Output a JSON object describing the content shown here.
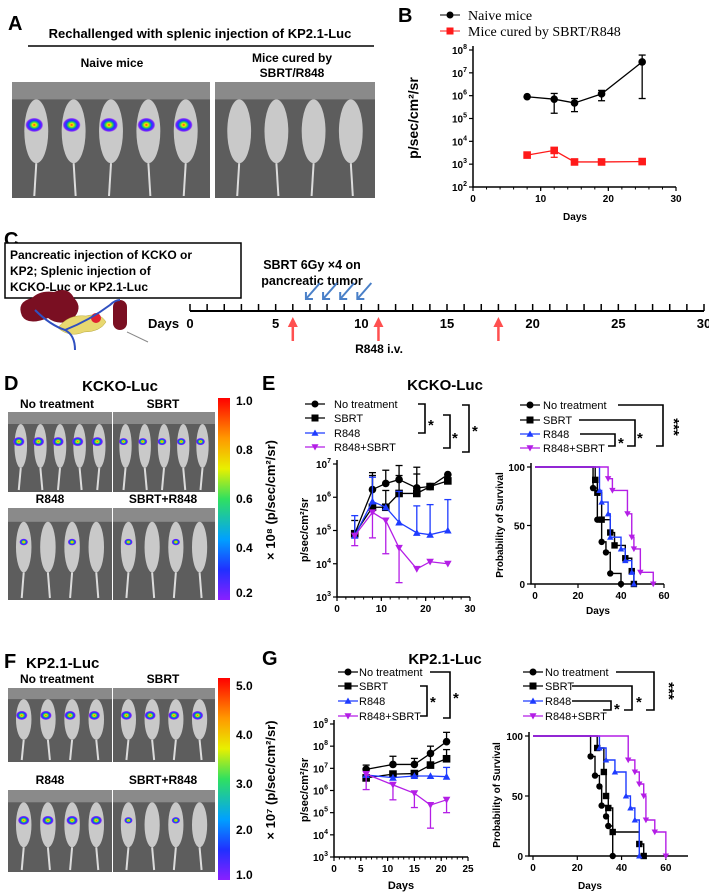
{
  "panels": {
    "A": {
      "letter": "A",
      "title": "Rechallenged with splenic injection of KP2.1-Luc",
      "label_naive": "Naive mice",
      "label_cured_1": "Mice cured by",
      "label_cured_2": "SBRT/R848"
    },
    "B": {
      "letter": "B"
    },
    "C": {
      "letter": "C",
      "box_lines": [
        "Pancreatic injection of KCKO or",
        "KP2; Splenic injection of",
        "KCKO-Luc or KP2.1-Luc"
      ],
      "sbrt_line1": "SBRT 6Gy ×4 on",
      "sbrt_line2": "pancreatic tumor",
      "days_label": "Days",
      "r848_label": "R848 i.v.",
      "timeline_max_day": 30,
      "sbrt_days": [
        7,
        8,
        9,
        10
      ],
      "r848_days": [
        6,
        11,
        18
      ]
    },
    "D": {
      "letter": "D",
      "title": "KCKO-Luc",
      "groups": [
        "No treatment",
        "SBRT",
        "R848",
        "SBRT+R848"
      ],
      "colorbar_ticks": [
        "1.0",
        "0.8",
        "0.6",
        "0.4",
        "0.2"
      ],
      "colorbar_label": "× 10⁸ (p/sec/cm²/sr)"
    },
    "E": {
      "letter": "E",
      "title": "KCKO-Luc"
    },
    "F": {
      "letter": "F",
      "title": "KP2.1-Luc",
      "groups": [
        "No treatment",
        "SBRT",
        "R848",
        "SBRT+R848"
      ],
      "colorbar_ticks": [
        "5.0",
        "4.0",
        "3.0",
        "2.0",
        "1.0"
      ],
      "colorbar_label": "× 10⁷ (p/sec/cm²/sr)"
    },
    "G": {
      "letter": "G",
      "title": "KP2.1-Luc"
    }
  },
  "colors": {
    "black": "#000000",
    "red": "#ff1a1a",
    "blue": "#1f3cff",
    "purple": "#b41ee6"
  },
  "chart_data": [
    {
      "id": "B",
      "type": "line",
      "yscale": "log",
      "xlabel": "Days",
      "ylabel": "p/sec/cm²/sr",
      "xlim": [
        0,
        30
      ],
      "xticks": [
        0,
        10,
        20,
        30
      ],
      "ylim_exp": [
        2,
        8
      ],
      "legend": "top",
      "series": [
        {
          "name": "Naive mice",
          "marker": "circle",
          "color": "#000000",
          "x": [
            8,
            12,
            15,
            19,
            25
          ],
          "y": [
            900000,
            700000,
            480000,
            1200000,
            30000000
          ],
          "err_upper": [
            null,
            1250000,
            750000,
            1700000,
            60000000
          ],
          "err_lower": [
            null,
            170000,
            200000,
            600000,
            750000
          ]
        },
        {
          "name": "Mice cured by SBRT/R848",
          "marker": "square",
          "color": "#ff1a1a",
          "x": [
            8,
            12,
            15,
            19,
            25
          ],
          "y": [
            2500,
            4000,
            1250,
            1250,
            1300
          ],
          "err_upper": [
            null,
            5000,
            null,
            null,
            null
          ],
          "err_lower": [
            null,
            2000,
            null,
            null,
            null
          ]
        }
      ]
    },
    {
      "id": "E-bli",
      "type": "line",
      "yscale": "log",
      "xlabel": "",
      "ylabel": "p/sec/cm²/sr",
      "xlim": [
        0,
        30
      ],
      "xticks": [
        0,
        10,
        20,
        30
      ],
      "ylim_exp": [
        3,
        7
      ],
      "legend": "top",
      "significance": [
        "*",
        "*",
        "*"
      ],
      "series": [
        {
          "name": "No treatment",
          "marker": "circle",
          "color": "#000000",
          "x": [
            4,
            8,
            11,
            14,
            18,
            21,
            25
          ],
          "y": [
            80000,
            1700000,
            2600000,
            3400000,
            1900000,
            2100000,
            4800000
          ],
          "err_upper": [
            200000,
            5500000,
            6500000,
            9000000,
            8000000,
            null,
            null
          ],
          "err_lower": [
            null,
            null,
            null,
            null,
            null,
            null,
            null
          ]
        },
        {
          "name": "SBRT",
          "marker": "square",
          "color": "#000000",
          "x": [
            4,
            8,
            11,
            14,
            18,
            21,
            25
          ],
          "y": [
            80000,
            500000,
            500000,
            1300000,
            1300000,
            2100000,
            3100000
          ],
          "err_upper": [
            null,
            4500000,
            1600000,
            4500000,
            5000000,
            null,
            null
          ],
          "err_lower": [
            null,
            null,
            null,
            null,
            null,
            null,
            null
          ]
        },
        {
          "name": "R848",
          "marker": "triangle-up",
          "color": "#1f3cff",
          "x": [
            4,
            8,
            11,
            14,
            18,
            21,
            25
          ],
          "y": [
            70000,
            750000,
            500000,
            175000,
            85000,
            75000,
            100000
          ],
          "err_upper": [
            280000,
            4000000,
            null,
            1500000,
            550000,
            600000,
            850000
          ],
          "err_lower": [
            null,
            null,
            null,
            null,
            null,
            null,
            null
          ]
        },
        {
          "name": "R848+SBRT",
          "marker": "triangle-down",
          "color": "#b41ee6",
          "x": [
            4,
            8,
            11,
            14,
            18,
            21,
            25
          ],
          "y": [
            70000,
            350000,
            200000,
            30000,
            7000,
            11500,
            10000
          ],
          "err_upper": [
            null,
            null,
            null,
            null,
            null,
            null,
            null
          ],
          "err_lower": [
            35000,
            60000,
            20000,
            2700,
            null,
            null,
            null
          ]
        }
      ]
    },
    {
      "id": "E-surv",
      "type": "line",
      "subtype": "survival",
      "xlabel": "Days",
      "ylabel": "Probability of Survival",
      "xlim": [
        0,
        60
      ],
      "xticks": [
        0,
        20,
        40,
        60
      ],
      "ylim": [
        0,
        100
      ],
      "yticks": [
        0,
        50,
        100
      ],
      "legend": "top",
      "significance": [
        "*",
        "*",
        "***"
      ],
      "series": [
        {
          "name": "No treatment",
          "marker": "circle",
          "color": "#000000",
          "x": [
            27,
            29,
            31,
            33,
            35,
            40
          ],
          "y": [
            82,
            55,
            36,
            27,
            9,
            0
          ]
        },
        {
          "name": "SBRT",
          "marker": "square",
          "color": "#000000",
          "x": [
            28,
            29,
            31,
            35,
            37,
            42,
            45,
            46
          ],
          "y": [
            89,
            78,
            55,
            44,
            33,
            22,
            11,
            0
          ]
        },
        {
          "name": "R848",
          "marker": "triangle-up",
          "color": "#1f3cff",
          "x": [
            30,
            31,
            34,
            35,
            40,
            42,
            45,
            46
          ],
          "y": [
            80,
            70,
            60,
            40,
            30,
            20,
            10,
            0
          ]
        },
        {
          "name": "R848+SBRT",
          "marker": "triangle-down",
          "color": "#b41ee6",
          "x": [
            34,
            36,
            43,
            45,
            46,
            49,
            55
          ],
          "y": [
            90,
            80,
            60,
            40,
            30,
            10,
            0
          ]
        }
      ]
    },
    {
      "id": "G-bli",
      "type": "line",
      "yscale": "log",
      "xlabel": "Days",
      "ylabel": "p/sec/cm²/sr",
      "xlim": [
        0,
        25
      ],
      "xticks": [
        0,
        5,
        10,
        15,
        20,
        25
      ],
      "ylim_exp": [
        3,
        9
      ],
      "legend": "top",
      "significance": [
        "*",
        "*"
      ],
      "series": [
        {
          "name": "No treatment",
          "marker": "circle",
          "color": "#000000",
          "x": [
            6,
            11,
            15,
            18,
            21
          ],
          "y": [
            9000000,
            15000000,
            15000000,
            47000000,
            160000000
          ],
          "err_upper": [
            14000000,
            35000000,
            28000000,
            100000000,
            420000000
          ],
          "err_lower": [
            null,
            null,
            null,
            null,
            null
          ]
        },
        {
          "name": "SBRT",
          "marker": "square",
          "color": "#000000",
          "x": [
            6,
            11,
            15,
            18,
            21
          ],
          "y": [
            3700000,
            5500000,
            5800000,
            14000000,
            27000000
          ],
          "err_upper": [
            null,
            null,
            null,
            50000000,
            70000000
          ],
          "err_lower": [
            null,
            null,
            null,
            null,
            null
          ]
        },
        {
          "name": "R848",
          "marker": "triangle-up",
          "color": "#1f3cff",
          "x": [
            6,
            11,
            15,
            18,
            21
          ],
          "y": [
            5000000,
            3800000,
            4500000,
            4500000,
            4200000
          ],
          "err_upper": [
            null,
            null,
            null,
            null,
            11000000
          ],
          "err_lower": [
            null,
            null,
            null,
            null,
            null
          ]
        },
        {
          "name": "R848+SBRT",
          "marker": "triangle-down",
          "color": "#b41ee6",
          "x": [
            6,
            11,
            15,
            18,
            21
          ],
          "y": [
            5500000,
            1800000,
            750000,
            220000,
            380000
          ],
          "err_upper": [
            null,
            null,
            null,
            null,
            null
          ],
          "err_lower": [
            1100000,
            380000,
            170000,
            20000,
            100000
          ]
        }
      ]
    },
    {
      "id": "G-surv",
      "type": "line",
      "subtype": "survival",
      "xlabel": "Days",
      "ylabel": "Probability of Survival",
      "xlim": [
        0,
        70
      ],
      "xticks": [
        0,
        20,
        40,
        60
      ],
      "ylim": [
        0,
        100
      ],
      "yticks": [
        0,
        50,
        100
      ],
      "legend": "top",
      "significance": [
        "*",
        "*",
        "***"
      ],
      "series": [
        {
          "name": "No treatment",
          "marker": "circle",
          "color": "#000000",
          "x": [
            26,
            28,
            30,
            31,
            33,
            34,
            36
          ],
          "y": [
            83,
            67,
            58,
            42,
            33,
            25,
            0
          ]
        },
        {
          "name": "SBRT",
          "marker": "square",
          "color": "#000000",
          "x": [
            29,
            32,
            33,
            34,
            36,
            48,
            50
          ],
          "y": [
            90,
            70,
            50,
            40,
            20,
            10,
            0
          ]
        },
        {
          "name": "R848",
          "marker": "triangle-up",
          "color": "#1f3cff",
          "x": [
            30,
            33,
            37,
            42,
            44,
            46,
            48
          ],
          "y": [
            90,
            80,
            70,
            50,
            40,
            30,
            0
          ]
        },
        {
          "name": "R848+SBRT",
          "marker": "triangle-down",
          "color": "#b41ee6",
          "x": [
            43,
            46,
            48,
            50,
            51,
            55,
            60
          ],
          "y": [
            80,
            70,
            60,
            50,
            30,
            20,
            0
          ]
        }
      ]
    }
  ]
}
